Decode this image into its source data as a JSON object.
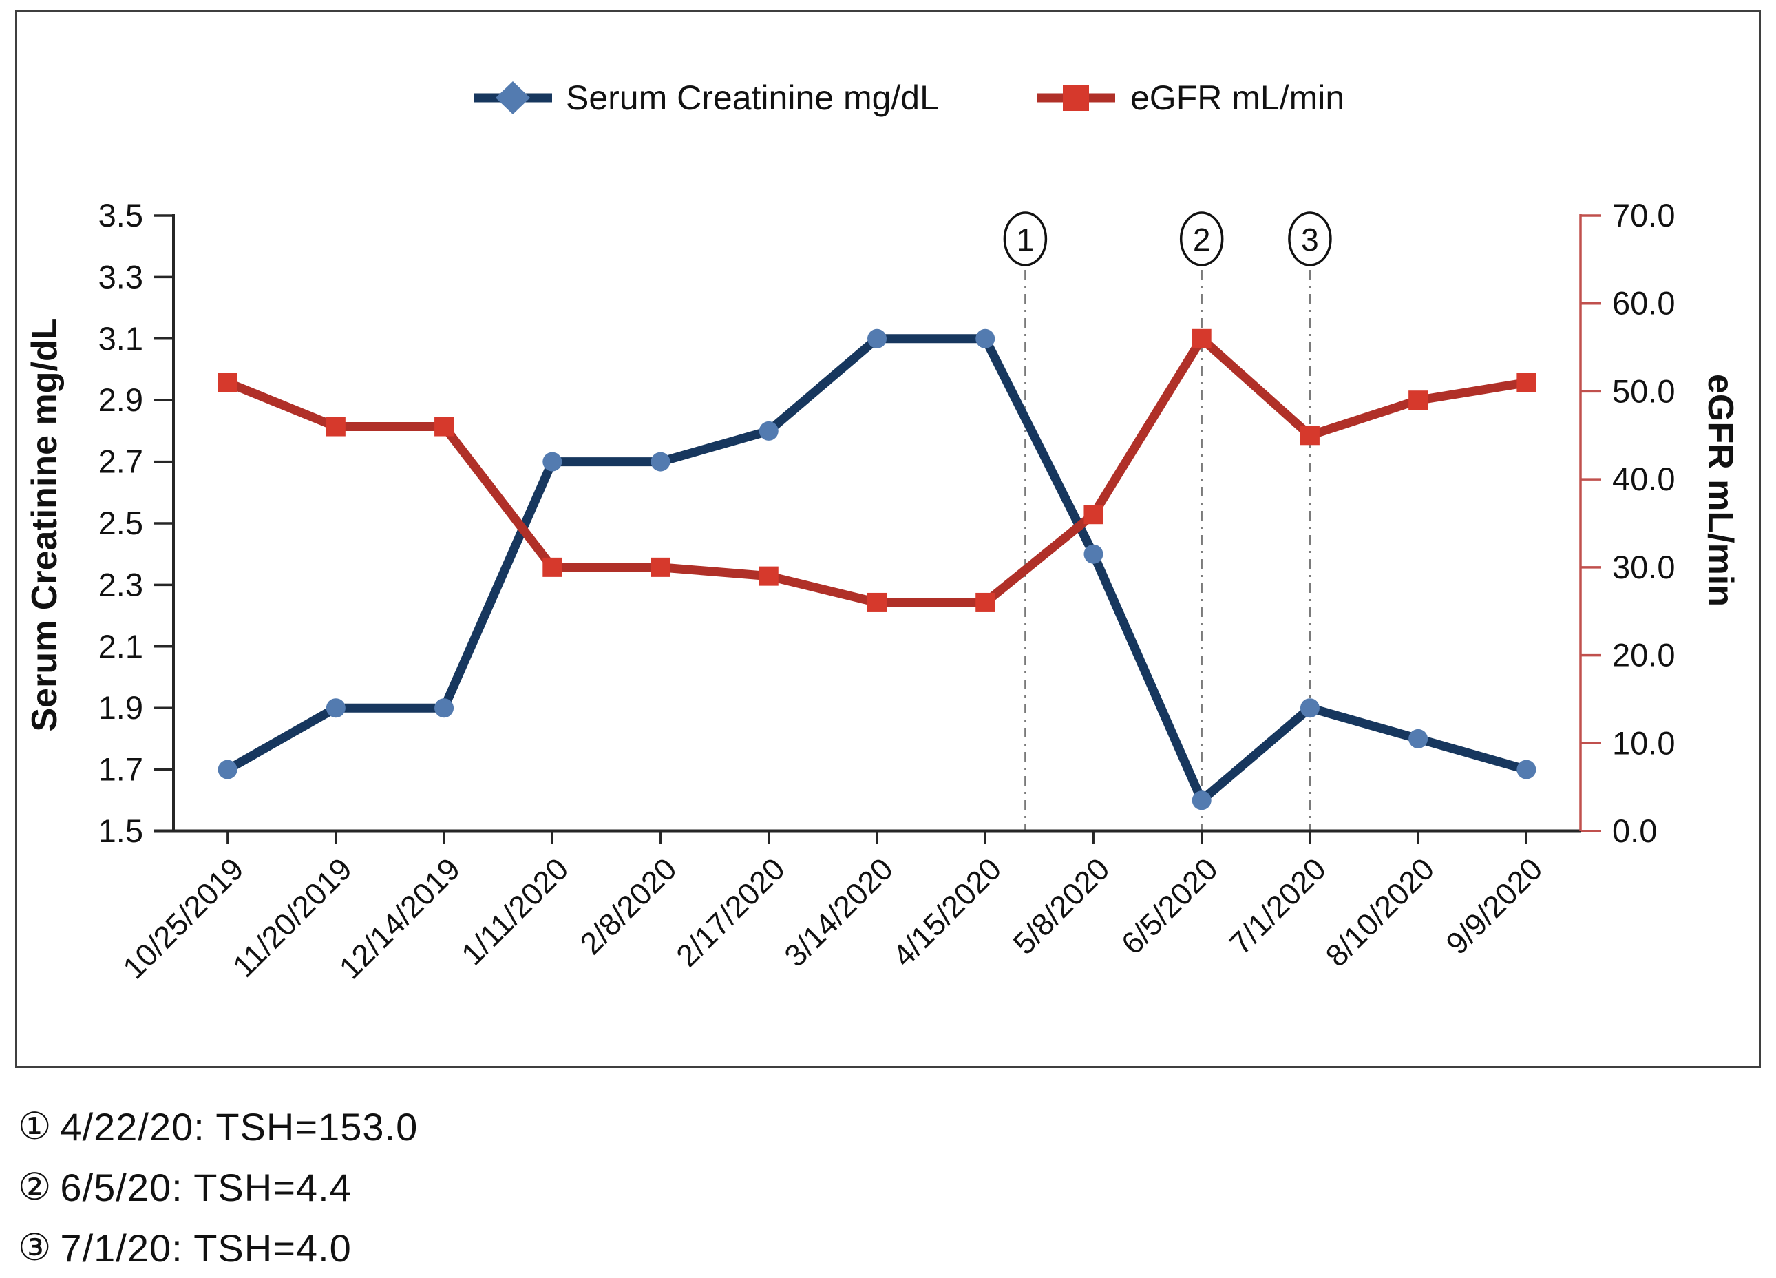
{
  "figure": {
    "background": "#ffffff",
    "border_color": "#3f3f3f"
  },
  "chart_data": {
    "type": "line",
    "title": "",
    "categories": [
      "10/25/2019",
      "11/20/2019",
      "12/14/2019",
      "1/11/2020",
      "2/8/2020",
      "2/17/2020",
      "3/14/2020",
      "4/15/2020",
      "5/8/2020",
      "6/5/2020",
      "7/1/2020",
      "8/10/2020",
      "9/9/2020"
    ],
    "series": [
      {
        "name": "Serum Creatinine mg/dL",
        "axis": "left",
        "marker": "circle",
        "line_color": "#17375e",
        "marker_color": "#537bb0",
        "values": [
          1.7,
          1.9,
          1.9,
          2.7,
          2.7,
          2.8,
          3.1,
          3.1,
          2.4,
          1.6,
          1.9,
          1.8,
          1.7
        ]
      },
      {
        "name": "eGFR mL/min",
        "axis": "right",
        "marker": "square",
        "line_color": "#b03028",
        "marker_color": "#d6392c",
        "values": [
          51,
          46,
          46,
          30,
          30,
          29,
          26,
          26,
          36,
          56,
          45,
          49,
          51
        ]
      }
    ],
    "left_axis": {
      "title": "Serum Creatinine mg/dL",
      "min": 1.5,
      "max": 3.5,
      "tick_labels": [
        "1.5",
        "1.7",
        "1.9",
        "2.1",
        "2.3",
        "2.5",
        "2.7",
        "2.9",
        "3.1",
        "3.3",
        "3.5"
      ],
      "color": "#262626"
    },
    "right_axis": {
      "title": "eGFR mL/min",
      "min": 0,
      "max": 70,
      "tick_labels": [
        "0.0",
        "10.0",
        "20.0",
        "30.0",
        "40.0",
        "50.0",
        "60.0",
        "70.0"
      ],
      "color": "#c0504d"
    },
    "grid": false,
    "legend_position": "top",
    "events": [
      {
        "label": "1",
        "position": 7.37
      },
      {
        "label": "2",
        "position": 9
      },
      {
        "label": "3",
        "position": 10
      }
    ]
  },
  "annotations": [
    {
      "symbol": "①",
      "text": "4/22/20: TSH=153.0"
    },
    {
      "symbol": "②",
      "text": "6/5/20: TSH=4.4"
    },
    {
      "symbol": "③",
      "text": "7/1/20: TSH=4.0"
    }
  ]
}
